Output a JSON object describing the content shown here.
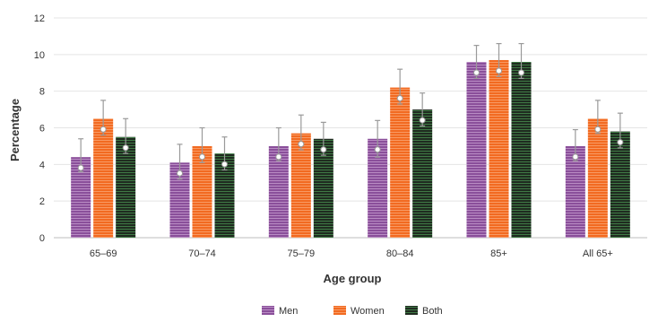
{
  "chart_data": {
    "type": "bar",
    "xlabel": "Age group",
    "ylabel": "Percentage",
    "ylim": [
      0,
      12
    ],
    "yticks": [
      0,
      2,
      4,
      6,
      8,
      10,
      12
    ],
    "grid": true,
    "legend_position": "bottom",
    "categories": [
      "65–69",
      "70–74",
      "75–79",
      "80–84",
      "85+",
      "All 65+"
    ],
    "series": [
      {
        "name": "Men",
        "color": "#8a4f9a",
        "values": [
          4.4,
          4.1,
          5.0,
          5.4,
          9.6,
          5.0
        ],
        "err_low": [
          3.6,
          3.2,
          4.2,
          4.4,
          8.7,
          4.2
        ],
        "err_high": [
          5.4,
          5.1,
          6.0,
          6.4,
          10.5,
          5.9
        ]
      },
      {
        "name": "Women",
        "color": "#f26a21",
        "values": [
          6.5,
          5.0,
          5.7,
          8.2,
          9.7,
          6.5
        ],
        "err_low": [
          5.6,
          4.1,
          4.8,
          7.3,
          8.8,
          5.7
        ],
        "err_high": [
          7.5,
          6.0,
          6.7,
          9.2,
          10.6,
          7.5
        ]
      },
      {
        "name": "Both",
        "color": "#1f2b20",
        "values": [
          5.5,
          4.6,
          5.4,
          7.0,
          9.6,
          5.8
        ],
        "err_low": [
          4.6,
          3.7,
          4.5,
          6.1,
          8.7,
          4.9
        ],
        "err_high": [
          6.5,
          5.5,
          6.3,
          7.9,
          10.6,
          6.8
        ]
      }
    ]
  }
}
